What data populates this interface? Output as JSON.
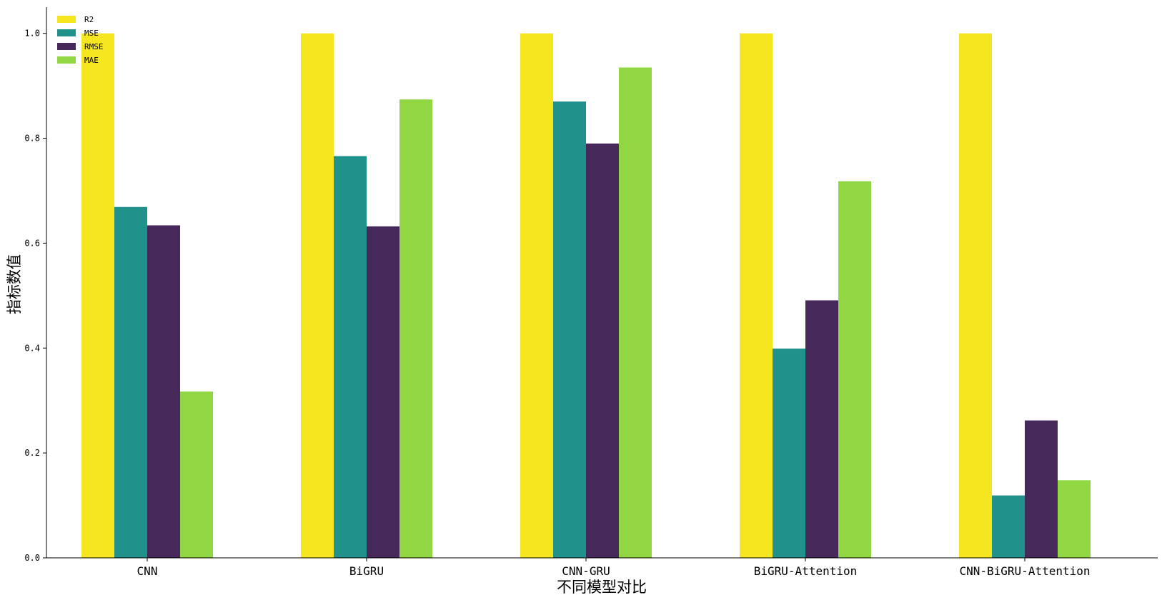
{
  "chart_data": {
    "type": "bar",
    "categories": [
      "CNN",
      "BiGRU",
      "CNN-GRU",
      "BiGRU-Attention",
      "CNN-BiGRU-Attention"
    ],
    "series": [
      {
        "name": "R2",
        "color": "#f5e61f",
        "values": [
          1.0,
          1.0,
          1.0,
          1.0,
          1.0
        ]
      },
      {
        "name": "MSE",
        "color": "#21918c",
        "values": [
          0.669,
          0.766,
          0.87,
          0.399,
          0.119
        ]
      },
      {
        "name": "RMSE",
        "color": "#46285a",
        "values": [
          0.634,
          0.632,
          0.79,
          0.491,
          0.262
        ]
      },
      {
        "name": "MAE",
        "color": "#90d743",
        "values": [
          0.317,
          0.874,
          0.935,
          0.718,
          0.148
        ]
      }
    ],
    "xlabel": "不同模型对比",
    "ylabel": "指标数值",
    "ylim": [
      0,
      1.05
    ],
    "yticks": [
      0.0,
      0.2,
      0.4,
      0.6,
      0.8,
      1.0
    ],
    "ytick_labels": [
      "0.0",
      "0.2",
      "0.4",
      "0.6",
      "0.8",
      "1.0"
    ],
    "grid": false,
    "legend_position": "top-left"
  }
}
